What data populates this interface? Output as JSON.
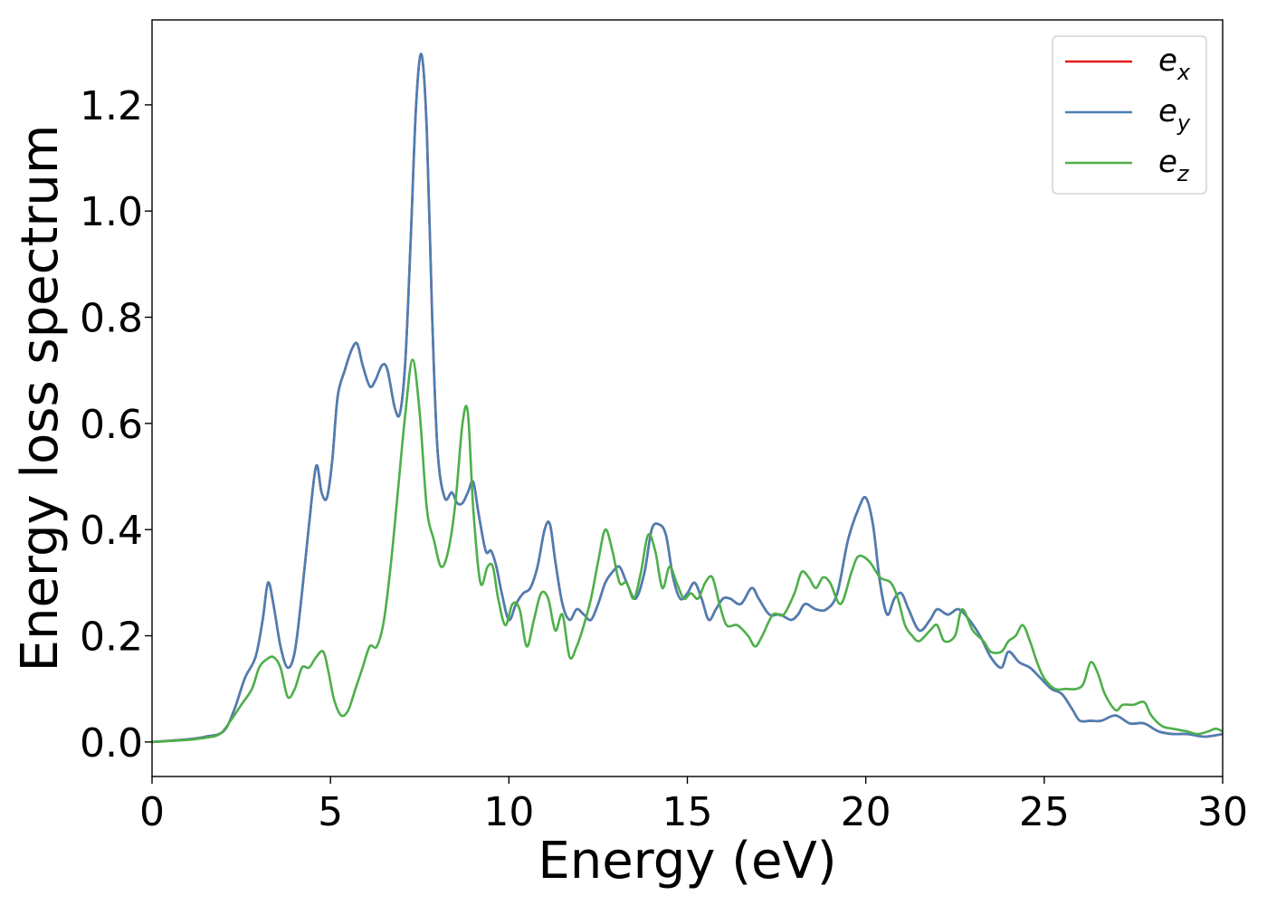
{
  "chart_data": {
    "type": "line",
    "title": "",
    "xlabel": "Energy (eV)",
    "ylabel": "Energy loss spectrum",
    "xlim": [
      0,
      30
    ],
    "ylim": [
      -0.065,
      1.36
    ],
    "xticks": [
      0,
      5,
      10,
      15,
      20,
      25,
      30
    ],
    "xtick_labels": [
      "0",
      "5",
      "10",
      "15",
      "20",
      "25",
      "30"
    ],
    "yticks": [
      0.0,
      0.2,
      0.4,
      0.6,
      0.8,
      1.0,
      1.2
    ],
    "ytick_labels": [
      "0.0",
      "0.2",
      "0.4",
      "0.6",
      "0.8",
      "1.0",
      "1.2"
    ],
    "grid": false,
    "legend_position": "top-right",
    "series": [
      {
        "name": "e_x",
        "legend_base": "e",
        "legend_sub": "x",
        "color": "#e41a1c",
        "x": [
          0,
          1,
          1.5,
          2,
          2.3,
          2.6,
          2.9,
          3.1,
          3.25,
          3.4,
          3.6,
          3.8,
          4.0,
          4.2,
          4.4,
          4.6,
          4.75,
          4.9,
          5.05,
          5.2,
          5.4,
          5.6,
          5.75,
          5.9,
          6.1,
          6.25,
          6.45,
          6.6,
          6.8,
          6.95,
          7.1,
          7.25,
          7.4,
          7.55,
          7.7,
          7.85,
          8.0,
          8.2,
          8.4,
          8.55,
          8.7,
          8.85,
          9.0,
          9.15,
          9.35,
          9.5,
          9.65,
          9.8,
          10.0,
          10.2,
          10.4,
          10.6,
          10.8,
          11.0,
          11.15,
          11.3,
          11.5,
          11.7,
          11.9,
          12.1,
          12.3,
          12.5,
          12.7,
          12.9,
          13.1,
          13.3,
          13.55,
          13.8,
          14.0,
          14.2,
          14.4,
          14.6,
          14.8,
          15.0,
          15.2,
          15.4,
          15.6,
          15.8,
          16.0,
          16.2,
          16.5,
          16.8,
          17.0,
          17.3,
          17.6,
          17.9,
          18.1,
          18.3,
          18.6,
          18.9,
          19.2,
          19.5,
          19.8,
          20.0,
          20.2,
          20.4,
          20.6,
          20.8,
          21.0,
          21.2,
          21.5,
          21.8,
          22.0,
          22.3,
          22.6,
          22.9,
          23.2,
          23.5,
          23.8,
          24.0,
          24.3,
          24.6,
          24.9,
          25.2,
          25.5,
          25.8,
          26.0,
          26.3,
          26.6,
          27.0,
          27.4,
          27.8,
          28.2,
          28.6,
          29.0,
          29.5,
          30.0
        ],
        "y": [
          0.0,
          0.005,
          0.01,
          0.02,
          0.06,
          0.12,
          0.16,
          0.23,
          0.3,
          0.26,
          0.18,
          0.14,
          0.17,
          0.28,
          0.41,
          0.52,
          0.47,
          0.46,
          0.53,
          0.65,
          0.7,
          0.74,
          0.75,
          0.71,
          0.67,
          0.68,
          0.71,
          0.7,
          0.63,
          0.62,
          0.72,
          0.95,
          1.2,
          1.295,
          1.15,
          0.8,
          0.55,
          0.46,
          0.47,
          0.45,
          0.45,
          0.47,
          0.49,
          0.43,
          0.36,
          0.36,
          0.33,
          0.28,
          0.23,
          0.26,
          0.28,
          0.29,
          0.33,
          0.4,
          0.41,
          0.34,
          0.26,
          0.23,
          0.25,
          0.24,
          0.23,
          0.26,
          0.3,
          0.32,
          0.33,
          0.3,
          0.27,
          0.32,
          0.4,
          0.41,
          0.39,
          0.31,
          0.27,
          0.28,
          0.3,
          0.27,
          0.23,
          0.25,
          0.27,
          0.27,
          0.26,
          0.29,
          0.27,
          0.24,
          0.24,
          0.23,
          0.24,
          0.26,
          0.25,
          0.25,
          0.28,
          0.38,
          0.44,
          0.46,
          0.41,
          0.3,
          0.24,
          0.27,
          0.28,
          0.25,
          0.21,
          0.23,
          0.25,
          0.24,
          0.25,
          0.23,
          0.2,
          0.16,
          0.14,
          0.17,
          0.15,
          0.14,
          0.12,
          0.1,
          0.09,
          0.06,
          0.04,
          0.04,
          0.04,
          0.05,
          0.035,
          0.035,
          0.02,
          0.015,
          0.015,
          0.01,
          0.015
        ]
      },
      {
        "name": "e_y",
        "legend_base": "e",
        "legend_sub": "y",
        "color": "#4a7fb5",
        "x": [
          0,
          1,
          1.5,
          2,
          2.3,
          2.6,
          2.9,
          3.1,
          3.25,
          3.4,
          3.6,
          3.8,
          4.0,
          4.2,
          4.4,
          4.6,
          4.75,
          4.9,
          5.05,
          5.2,
          5.4,
          5.6,
          5.75,
          5.9,
          6.1,
          6.25,
          6.45,
          6.6,
          6.8,
          6.95,
          7.1,
          7.25,
          7.4,
          7.55,
          7.7,
          7.85,
          8.0,
          8.2,
          8.4,
          8.55,
          8.7,
          8.85,
          9.0,
          9.15,
          9.35,
          9.5,
          9.65,
          9.8,
          10.0,
          10.2,
          10.4,
          10.6,
          10.8,
          11.0,
          11.15,
          11.3,
          11.5,
          11.7,
          11.9,
          12.1,
          12.3,
          12.5,
          12.7,
          12.9,
          13.1,
          13.3,
          13.55,
          13.8,
          14.0,
          14.2,
          14.4,
          14.6,
          14.8,
          15.0,
          15.2,
          15.4,
          15.6,
          15.8,
          16.0,
          16.2,
          16.5,
          16.8,
          17.0,
          17.3,
          17.6,
          17.9,
          18.1,
          18.3,
          18.6,
          18.9,
          19.2,
          19.5,
          19.8,
          20.0,
          20.2,
          20.4,
          20.6,
          20.8,
          21.0,
          21.2,
          21.5,
          21.8,
          22.0,
          22.3,
          22.6,
          22.9,
          23.2,
          23.5,
          23.8,
          24.0,
          24.3,
          24.6,
          24.9,
          25.2,
          25.5,
          25.8,
          26.0,
          26.3,
          26.6,
          27.0,
          27.4,
          27.8,
          28.2,
          28.6,
          29.0,
          29.5,
          30.0
        ],
        "y": [
          0.0,
          0.005,
          0.01,
          0.02,
          0.06,
          0.12,
          0.16,
          0.23,
          0.3,
          0.26,
          0.18,
          0.14,
          0.17,
          0.28,
          0.41,
          0.52,
          0.47,
          0.46,
          0.53,
          0.65,
          0.7,
          0.74,
          0.75,
          0.71,
          0.67,
          0.68,
          0.71,
          0.7,
          0.63,
          0.62,
          0.72,
          0.95,
          1.2,
          1.295,
          1.15,
          0.8,
          0.55,
          0.46,
          0.47,
          0.45,
          0.45,
          0.47,
          0.49,
          0.43,
          0.36,
          0.36,
          0.33,
          0.28,
          0.23,
          0.26,
          0.28,
          0.29,
          0.33,
          0.4,
          0.41,
          0.34,
          0.26,
          0.23,
          0.25,
          0.24,
          0.23,
          0.26,
          0.3,
          0.32,
          0.33,
          0.3,
          0.27,
          0.32,
          0.4,
          0.41,
          0.39,
          0.31,
          0.27,
          0.28,
          0.3,
          0.27,
          0.23,
          0.25,
          0.27,
          0.27,
          0.26,
          0.29,
          0.27,
          0.24,
          0.24,
          0.23,
          0.24,
          0.26,
          0.25,
          0.25,
          0.28,
          0.38,
          0.44,
          0.46,
          0.41,
          0.3,
          0.24,
          0.27,
          0.28,
          0.25,
          0.21,
          0.23,
          0.25,
          0.24,
          0.25,
          0.23,
          0.2,
          0.16,
          0.14,
          0.17,
          0.15,
          0.14,
          0.12,
          0.1,
          0.09,
          0.06,
          0.04,
          0.04,
          0.04,
          0.05,
          0.035,
          0.035,
          0.02,
          0.015,
          0.015,
          0.01,
          0.015
        ]
      },
      {
        "name": "e_z",
        "legend_base": "e",
        "legend_sub": "z",
        "color": "#4daf4a",
        "x": [
          0,
          1,
          1.5,
          1.9,
          2.2,
          2.5,
          2.8,
          3.0,
          3.2,
          3.4,
          3.6,
          3.8,
          4.0,
          4.2,
          4.4,
          4.6,
          4.8,
          4.95,
          5.1,
          5.3,
          5.5,
          5.7,
          5.9,
          6.1,
          6.3,
          6.5,
          6.7,
          6.9,
          7.1,
          7.3,
          7.5,
          7.7,
          7.9,
          8.1,
          8.3,
          8.5,
          8.7,
          8.85,
          9.0,
          9.2,
          9.4,
          9.55,
          9.7,
          9.9,
          10.1,
          10.3,
          10.5,
          10.7,
          10.9,
          11.1,
          11.3,
          11.5,
          11.7,
          11.9,
          12.1,
          12.3,
          12.5,
          12.7,
          12.9,
          13.1,
          13.3,
          13.5,
          13.7,
          13.9,
          14.1,
          14.3,
          14.5,
          14.7,
          14.9,
          15.1,
          15.3,
          15.5,
          15.7,
          15.9,
          16.1,
          16.4,
          16.7,
          16.9,
          17.1,
          17.4,
          17.7,
          18.0,
          18.2,
          18.4,
          18.6,
          18.8,
          19.0,
          19.3,
          19.6,
          19.8,
          20.1,
          20.4,
          20.7,
          20.9,
          21.1,
          21.3,
          21.5,
          21.8,
          22.0,
          22.2,
          22.5,
          22.7,
          23.0,
          23.3,
          23.5,
          23.8,
          24.0,
          24.2,
          24.4,
          24.6,
          24.8,
          25.0,
          25.3,
          25.6,
          25.9,
          26.1,
          26.3,
          26.5,
          26.7,
          27.0,
          27.2,
          27.5,
          27.8,
          28.0,
          28.3,
          28.6,
          29.0,
          29.3,
          29.6,
          29.8,
          30.0
        ],
        "y": [
          0.0,
          0.004,
          0.008,
          0.015,
          0.04,
          0.07,
          0.1,
          0.14,
          0.155,
          0.16,
          0.14,
          0.085,
          0.1,
          0.14,
          0.14,
          0.16,
          0.17,
          0.13,
          0.08,
          0.05,
          0.06,
          0.1,
          0.14,
          0.18,
          0.18,
          0.23,
          0.34,
          0.48,
          0.62,
          0.72,
          0.62,
          0.44,
          0.38,
          0.33,
          0.36,
          0.45,
          0.6,
          0.62,
          0.44,
          0.3,
          0.33,
          0.33,
          0.27,
          0.22,
          0.26,
          0.25,
          0.18,
          0.23,
          0.28,
          0.27,
          0.21,
          0.24,
          0.16,
          0.18,
          0.22,
          0.27,
          0.34,
          0.4,
          0.36,
          0.3,
          0.3,
          0.27,
          0.32,
          0.39,
          0.36,
          0.29,
          0.33,
          0.3,
          0.27,
          0.28,
          0.27,
          0.3,
          0.31,
          0.26,
          0.22,
          0.22,
          0.2,
          0.18,
          0.2,
          0.24,
          0.24,
          0.28,
          0.32,
          0.31,
          0.29,
          0.31,
          0.3,
          0.26,
          0.32,
          0.35,
          0.34,
          0.31,
          0.3,
          0.27,
          0.22,
          0.2,
          0.19,
          0.21,
          0.22,
          0.19,
          0.2,
          0.25,
          0.21,
          0.19,
          0.17,
          0.17,
          0.19,
          0.2,
          0.22,
          0.19,
          0.15,
          0.12,
          0.1,
          0.1,
          0.1,
          0.11,
          0.15,
          0.13,
          0.09,
          0.06,
          0.07,
          0.07,
          0.075,
          0.05,
          0.03,
          0.025,
          0.02,
          0.015,
          0.02,
          0.025,
          0.02
        ]
      }
    ]
  }
}
